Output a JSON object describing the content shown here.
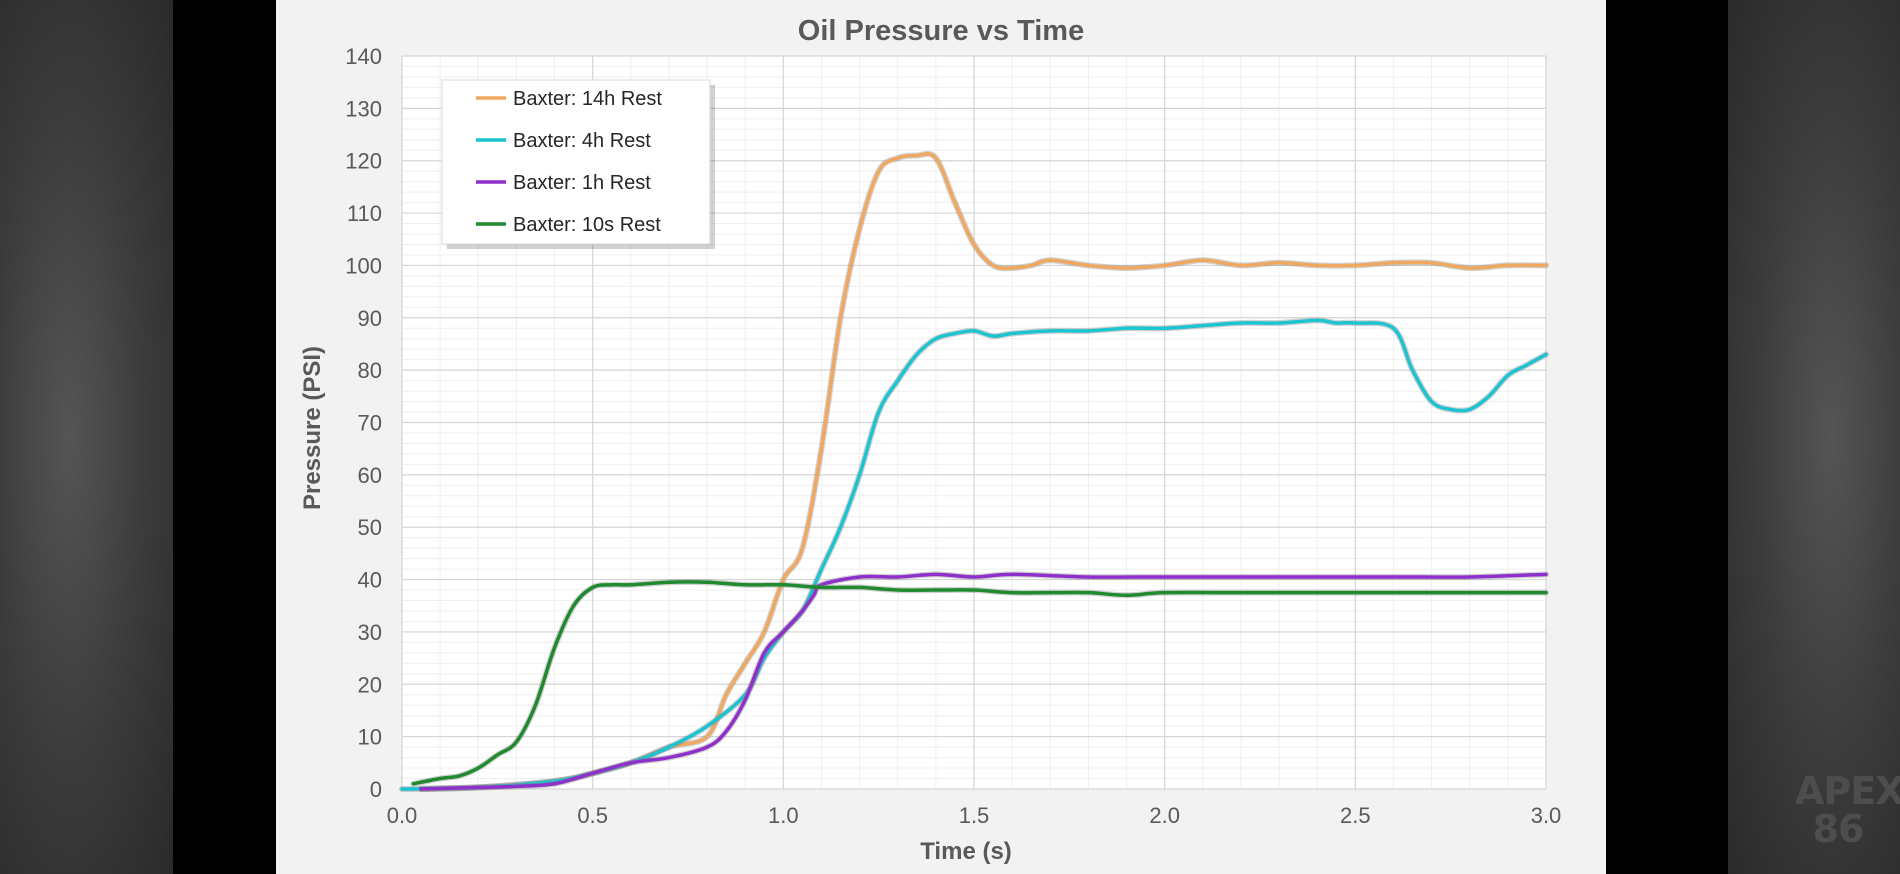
{
  "watermark": {
    "line1": "APEX",
    "line2": "86"
  },
  "chart_data": {
    "type": "line",
    "title": "Oil Pressure vs Time",
    "xlabel": "Time (s)",
    "ylabel": "Pressure (PSI)",
    "xlim": [
      0,
      3
    ],
    "ylim": [
      0,
      140
    ],
    "xticks": [
      "0.0",
      "0.5",
      "1.0",
      "1.5",
      "2.0",
      "2.5",
      "3.0"
    ],
    "yticks": [
      "0",
      "10",
      "20",
      "30",
      "40",
      "50",
      "60",
      "70",
      "80",
      "90",
      "100",
      "110",
      "120",
      "130",
      "140"
    ],
    "grid": true,
    "legend": "top-left",
    "series": [
      {
        "name": "Baxter: 14h Rest",
        "color": "#f0a860",
        "x": [
          0.05,
          0.2,
          0.4,
          0.5,
          0.6,
          0.7,
          0.8,
          0.85,
          0.9,
          0.95,
          1.0,
          1.05,
          1.1,
          1.15,
          1.2,
          1.25,
          1.3,
          1.35,
          1.4,
          1.45,
          1.5,
          1.55,
          1.6,
          1.65,
          1.7,
          1.8,
          1.9,
          2.0,
          2.1,
          2.2,
          2.3,
          2.4,
          2.5,
          2.6,
          2.7,
          2.8,
          2.9,
          3.0
        ],
        "y": [
          0,
          0.3,
          1.5,
          3,
          5,
          8,
          10,
          18,
          24,
          30,
          40,
          46,
          65,
          90,
          107,
          118,
          120.5,
          121,
          120.5,
          112,
          104,
          100,
          99.5,
          100,
          101,
          100,
          99.5,
          100,
          101,
          100,
          100.5,
          100,
          100,
          100.5,
          100.5,
          99.5,
          100,
          100
        ]
      },
      {
        "name": "Baxter: 4h Rest",
        "color": "#1cc3d0",
        "x": [
          0.0,
          0.2,
          0.4,
          0.5,
          0.6,
          0.7,
          0.8,
          0.9,
          0.95,
          1.0,
          1.05,
          1.1,
          1.15,
          1.2,
          1.25,
          1.3,
          1.35,
          1.4,
          1.45,
          1.5,
          1.55,
          1.6,
          1.7,
          1.8,
          1.9,
          2.0,
          2.1,
          2.2,
          2.3,
          2.4,
          2.45,
          2.5,
          2.6,
          2.65,
          2.7,
          2.75,
          2.8,
          2.85,
          2.9,
          2.95,
          3.0
        ],
        "y": [
          0,
          0.3,
          1.5,
          3,
          5,
          8,
          12,
          18,
          25,
          30,
          34,
          42,
          50,
          60,
          72,
          78,
          83,
          86,
          87,
          87.5,
          86.5,
          87,
          87.5,
          87.5,
          88,
          88,
          88.5,
          89,
          89,
          89.5,
          89,
          89,
          88,
          80,
          74,
          72.5,
          72.5,
          75,
          79,
          81,
          83
        ]
      },
      {
        "name": "Baxter: 1h Rest",
        "color": "#8f2fcc",
        "x": [
          0.05,
          0.2,
          0.3,
          0.4,
          0.5,
          0.6,
          0.7,
          0.8,
          0.85,
          0.9,
          0.95,
          1.0,
          1.05,
          1.08,
          1.1,
          1.2,
          1.3,
          1.4,
          1.5,
          1.6,
          1.8,
          2.0,
          2.2,
          2.4,
          2.6,
          2.8,
          3.0
        ],
        "y": [
          0,
          0.3,
          0.5,
          1,
          3,
          5,
          6,
          8,
          11,
          17,
          26,
          30,
          34,
          37,
          39,
          40.5,
          40.5,
          41,
          40.5,
          41,
          40.5,
          40.5,
          40.5,
          40.5,
          40.5,
          40.5,
          41
        ]
      },
      {
        "name": "Baxter: 10s Rest",
        "color": "#1f8a2e",
        "x": [
          0.03,
          0.1,
          0.15,
          0.2,
          0.25,
          0.3,
          0.35,
          0.4,
          0.45,
          0.5,
          0.55,
          0.6,
          0.7,
          0.8,
          0.9,
          1.0,
          1.1,
          1.2,
          1.3,
          1.4,
          1.5,
          1.6,
          1.7,
          1.8,
          1.9,
          2.0,
          2.2,
          2.4,
          2.6,
          2.8,
          3.0
        ],
        "y": [
          1,
          2,
          2.5,
          4,
          6.5,
          9,
          16,
          27,
          35,
          38.5,
          39,
          39,
          39.5,
          39.5,
          39,
          39,
          38.5,
          38.5,
          38,
          38,
          38,
          37.5,
          37.5,
          37.5,
          37,
          37.5,
          37.5,
          37.5,
          37.5,
          37.5,
          37.5
        ]
      }
    ]
  }
}
